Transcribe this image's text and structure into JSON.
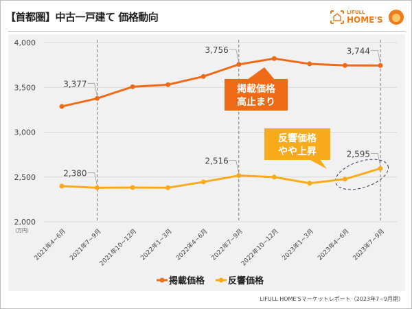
{
  "header": {
    "title": "【首都圏】中古一戸建て 価格動向",
    "logo_top": "LIFULL",
    "logo_bottom": "HOME'S"
  },
  "source": "LIFULL HOME'Sマーケットレポート（2023年7~9月期）",
  "chart_data": {
    "type": "line",
    "categories": [
      "2021年4~6月",
      "2021年7~9月",
      "2021年10~12月",
      "2022年1~3月",
      "2022年4~6月",
      "2022年7~9月",
      "2022年10~12月",
      "2023年1~3月",
      "2023年4~6月",
      "2023年7~9月"
    ],
    "ylim": [
      2000,
      4000
    ],
    "yticks": [
      "2,000",
      "2,500",
      "3,000",
      "3,500",
      "4,000"
    ],
    "ytick_values": [
      2000,
      2500,
      3000,
      3500,
      4000
    ],
    "yunit": "（万円）",
    "grid": true,
    "legend_position": "bottom",
    "series": [
      {
        "name": "掲載価格",
        "color": "#ee6a16",
        "values": [
          3287,
          3377,
          3507,
          3530,
          3622,
          3756,
          3822,
          3762,
          3745,
          3744
        ]
      },
      {
        "name": "反響価格",
        "color": "#f7aa1a",
        "values": [
          2398,
          2380,
          2382,
          2380,
          2445,
          2516,
          2499,
          2430,
          2476,
          2595
        ]
      }
    ],
    "highlight_categories": [
      1,
      5,
      9
    ],
    "data_labels": [
      {
        "series": 0,
        "index": 1,
        "text": "3,377"
      },
      {
        "series": 0,
        "index": 5,
        "text": "3,756"
      },
      {
        "series": 0,
        "index": 9,
        "text": "3,744"
      },
      {
        "series": 1,
        "index": 1,
        "text": "2,380"
      },
      {
        "series": 1,
        "index": 5,
        "text": "2,516"
      },
      {
        "series": 1,
        "index": 9,
        "text": "2,595"
      }
    ],
    "annotations": [
      {
        "text": [
          "掲載価格",
          "高止まり"
        ],
        "color": "#ee6a16"
      },
      {
        "text": [
          "反響価格",
          "やや上昇"
        ],
        "color": "#f7aa1a"
      }
    ]
  }
}
